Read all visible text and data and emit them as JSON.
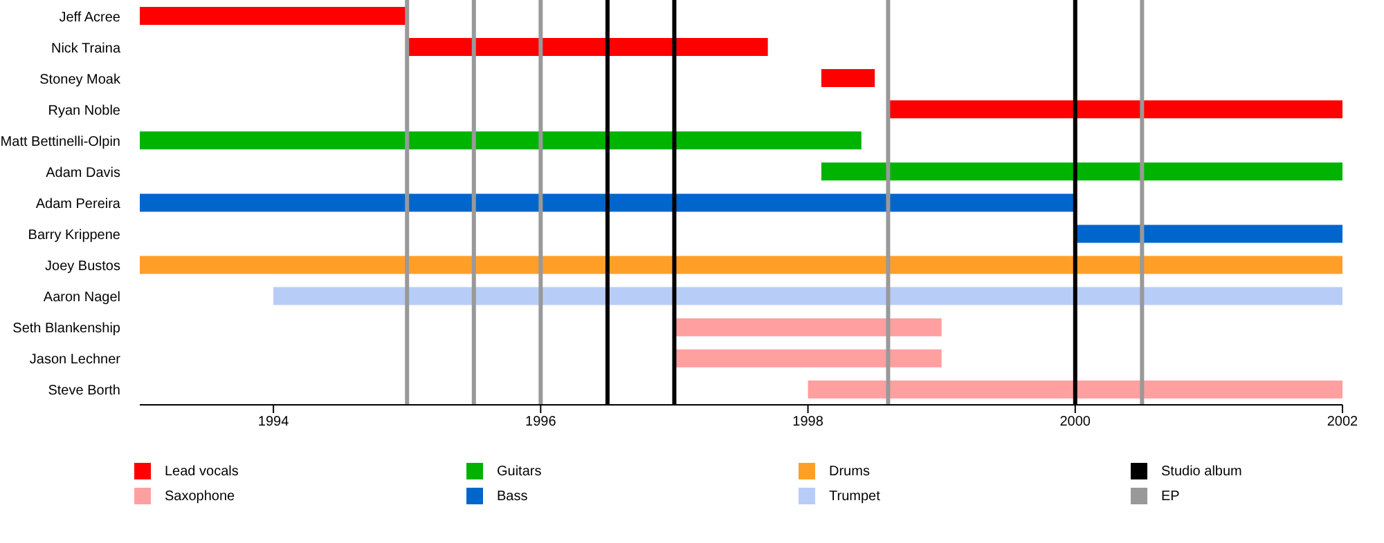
{
  "chart_data": {
    "type": "bar",
    "orientation": "horizontal",
    "categories": [
      "Jeff Acree",
      "Nick Traina",
      "Stoney Moak",
      "Ryan Noble",
      "Matt Bettinelli-Olpin",
      "Adam Davis",
      "Adam Pereira",
      "Barry Krippene",
      "Joey Bustos",
      "Aaron Nagel",
      "Seth Blankenship",
      "Jason Lechner",
      "Steve Borth"
    ],
    "series": [
      {
        "name": "Lead vocals",
        "color": "#ff0000",
        "base": [
          1993,
          1995,
          1998.1,
          1998.6,
          null,
          null,
          null,
          null,
          null,
          null,
          null,
          null,
          null
        ],
        "values": [
          2,
          2.7,
          0.4,
          3.4,
          null,
          null,
          null,
          null,
          null,
          null,
          null,
          null,
          null
        ]
      },
      {
        "name": "Saxophone",
        "color": "#ff9f9f",
        "base": [
          null,
          null,
          null,
          null,
          null,
          null,
          null,
          null,
          null,
          null,
          1997,
          1997,
          1998
        ],
        "values": [
          null,
          null,
          null,
          null,
          null,
          null,
          null,
          null,
          null,
          null,
          2,
          2,
          4
        ]
      },
      {
        "name": "Guitars",
        "color": "#00b300",
        "base": [
          null,
          null,
          null,
          null,
          1993,
          1998.1,
          null,
          null,
          null,
          null,
          null,
          null,
          null
        ],
        "values": [
          null,
          null,
          null,
          null,
          5.4,
          3.9,
          null,
          null,
          null,
          null,
          null,
          null,
          null
        ]
      },
      {
        "name": "Bass",
        "color": "#0066cc",
        "base": [
          null,
          null,
          null,
          null,
          null,
          null,
          1993,
          2000,
          null,
          null,
          null,
          null,
          null
        ],
        "values": [
          null,
          null,
          null,
          null,
          null,
          null,
          7,
          2,
          null,
          null,
          null,
          null,
          null
        ]
      },
      {
        "name": "Drums",
        "color": "#ff9f28",
        "base": [
          null,
          null,
          null,
          null,
          null,
          null,
          null,
          null,
          1993,
          null,
          null,
          null,
          null
        ],
        "values": [
          null,
          null,
          null,
          null,
          null,
          null,
          null,
          null,
          9,
          null,
          null,
          null,
          null
        ]
      },
      {
        "name": "Trumpet",
        "color": "#b8ccf8",
        "base": [
          null,
          null,
          null,
          null,
          null,
          null,
          null,
          null,
          null,
          1994,
          null,
          null,
          null
        ],
        "values": [
          null,
          null,
          null,
          null,
          null,
          null,
          null,
          null,
          null,
          8,
          null,
          null,
          null
        ]
      }
    ],
    "xlim": [
      1993,
      2002
    ],
    "xticks": [
      1994,
      1996,
      1998,
      2000,
      2002
    ],
    "ref_lines": [
      {
        "axis": "x",
        "value": 1995,
        "color": "#999999"
      },
      {
        "axis": "x",
        "value": 1995.5,
        "color": "#999999"
      },
      {
        "axis": "x",
        "value": 1996,
        "color": "#999999"
      },
      {
        "axis": "x",
        "value": 1996.5,
        "label": "Studio album",
        "color": "#000000"
      },
      {
        "axis": "x",
        "value": 1997,
        "color": "#000000"
      },
      {
        "axis": "x",
        "value": 1998.6,
        "label": "EP",
        "color": "#999999"
      },
      {
        "axis": "x",
        "value": 2000,
        "color": "#000000"
      },
      {
        "axis": "x",
        "value": 2000.5,
        "color": "#999999"
      }
    ],
    "legend": "bottom"
  }
}
